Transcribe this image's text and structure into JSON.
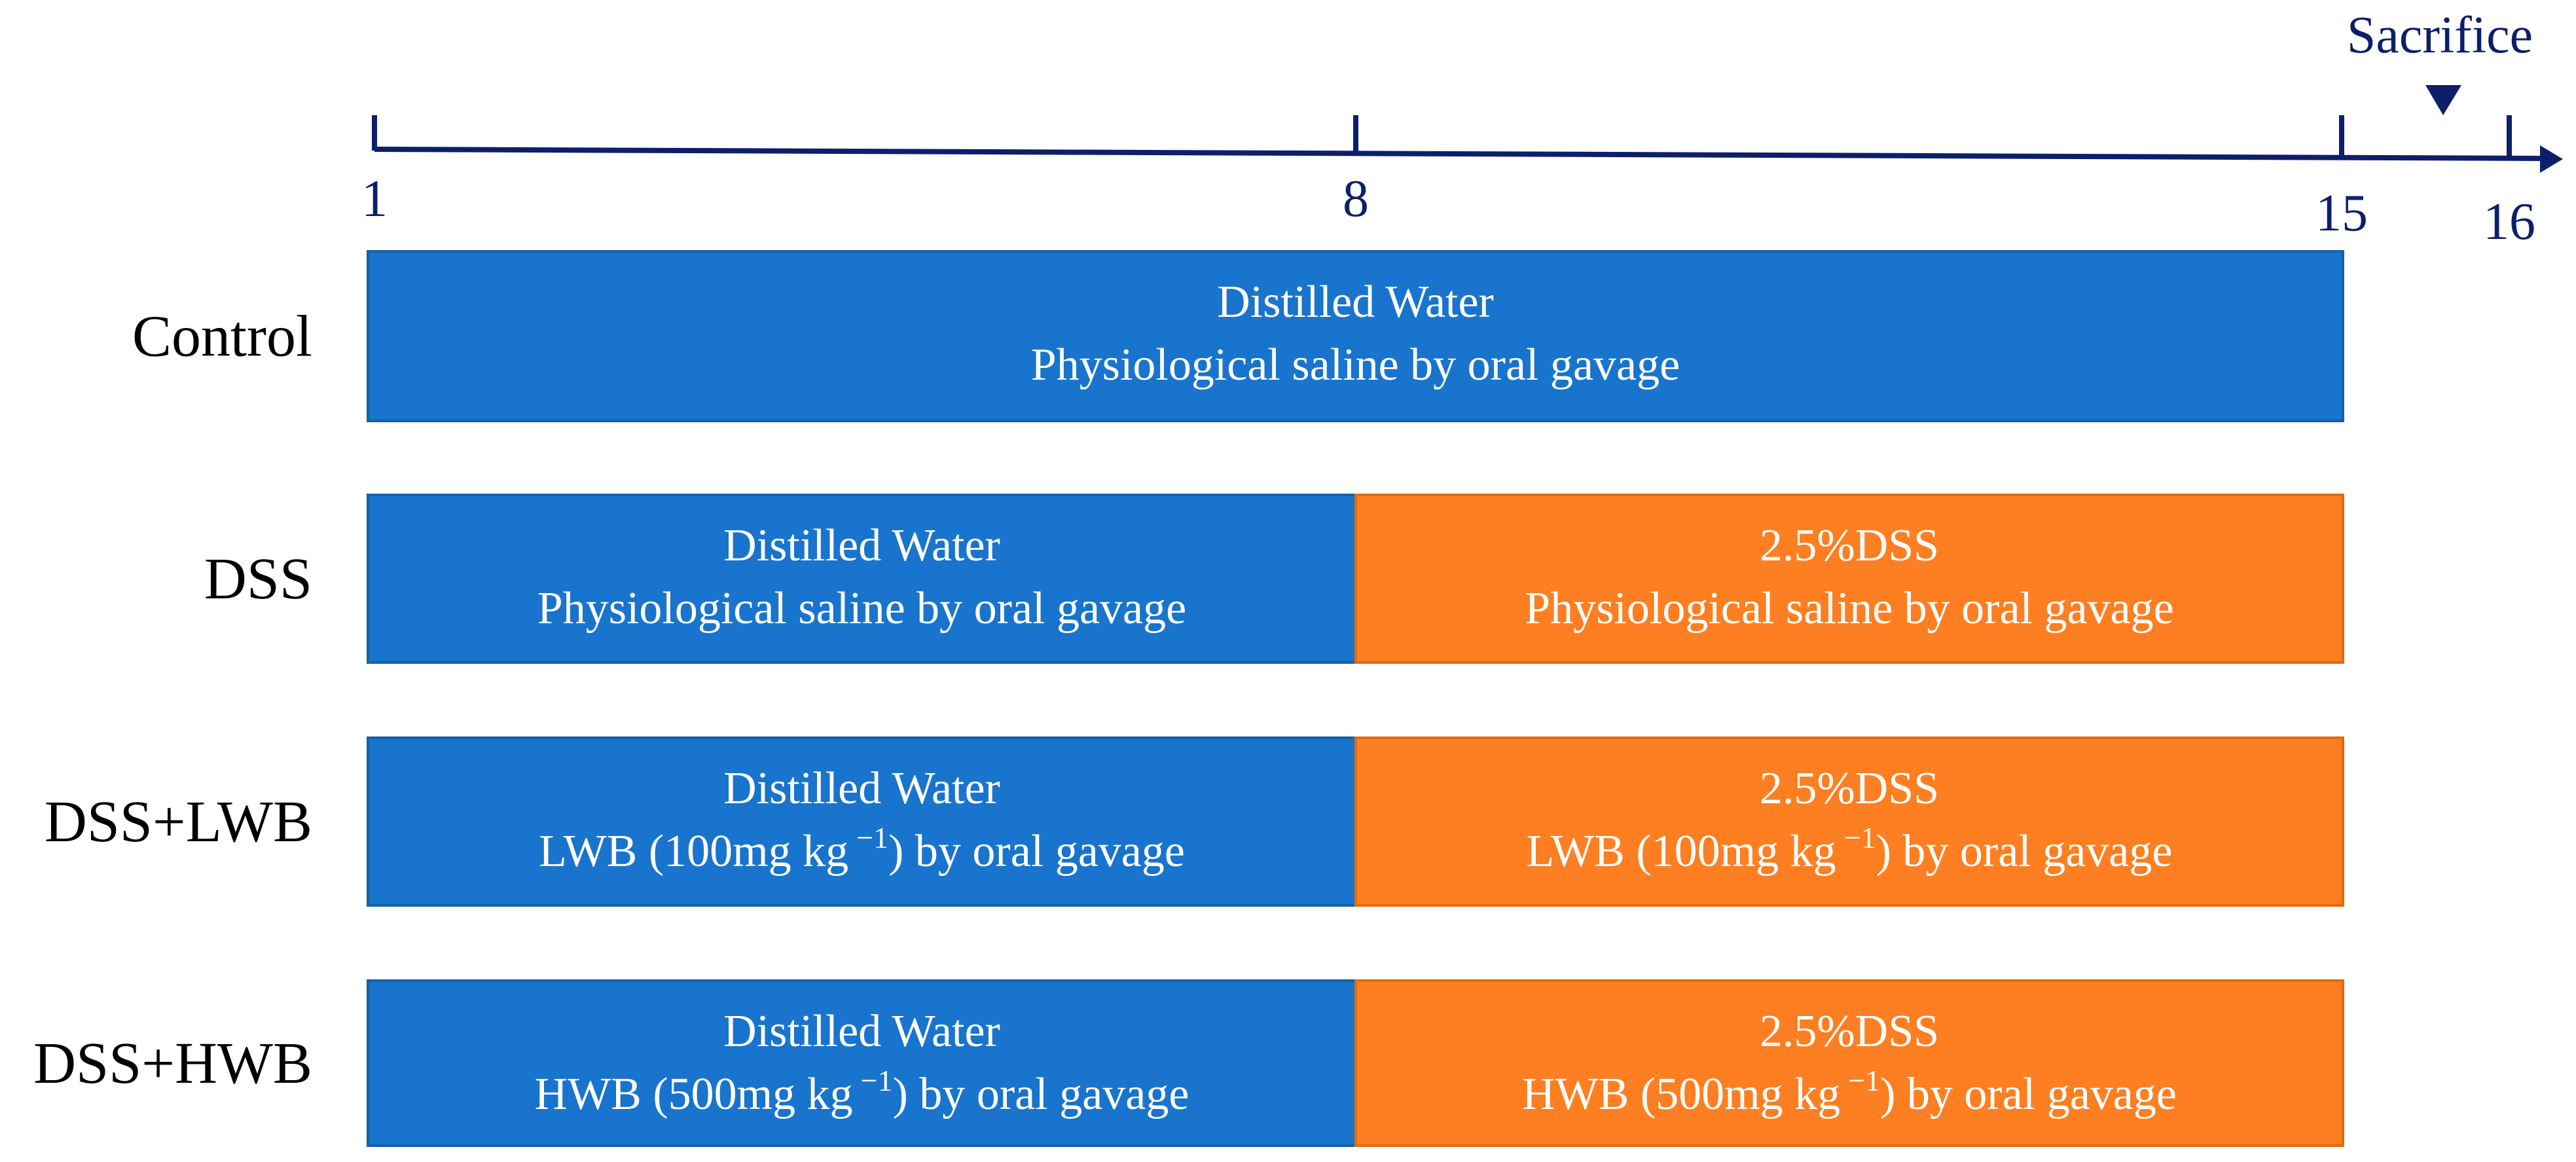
{
  "timeline": {
    "ticks": [
      "1",
      "8",
      "15",
      "16"
    ],
    "marker": "Sacrifice"
  },
  "groups": [
    {
      "label": "Control",
      "segments": [
        {
          "lines": [
            {
              "text": "Distilled Water"
            },
            {
              "text": "Physiological saline by oral gavage"
            }
          ]
        }
      ]
    },
    {
      "label": "DSS",
      "segments": [
        {
          "lines": [
            {
              "text": "Distilled Water"
            },
            {
              "text": "Physiological saline by oral gavage"
            }
          ]
        },
        {
          "lines": [
            {
              "text": "2.5%DSS"
            },
            {
              "text": "Physiological saline by oral gavage"
            }
          ]
        }
      ]
    },
    {
      "label": "DSS+LWB",
      "segments": [
        {
          "lines": [
            {
              "text": "Distilled Water"
            },
            {
              "text": "LWB (100mg kg",
              "sup": "−1",
              "after": ") by oral gavage"
            }
          ]
        },
        {
          "lines": [
            {
              "text": "2.5%DSS"
            },
            {
              "text": "LWB (100mg kg",
              "sup": "−1",
              "after": ") by oral gavage"
            }
          ]
        }
      ]
    },
    {
      "label": "DSS+HWB",
      "segments": [
        {
          "lines": [
            {
              "text": "Distilled Water"
            },
            {
              "text": "HWB (500mg kg",
              "sup": "−1",
              "after": ") by oral gavage"
            }
          ]
        },
        {
          "lines": [
            {
              "text": "2.5%DSS"
            },
            {
              "text": "HWB (500mg kg",
              "sup": "−1",
              "after": ") by oral gavage"
            }
          ]
        }
      ]
    }
  ]
}
